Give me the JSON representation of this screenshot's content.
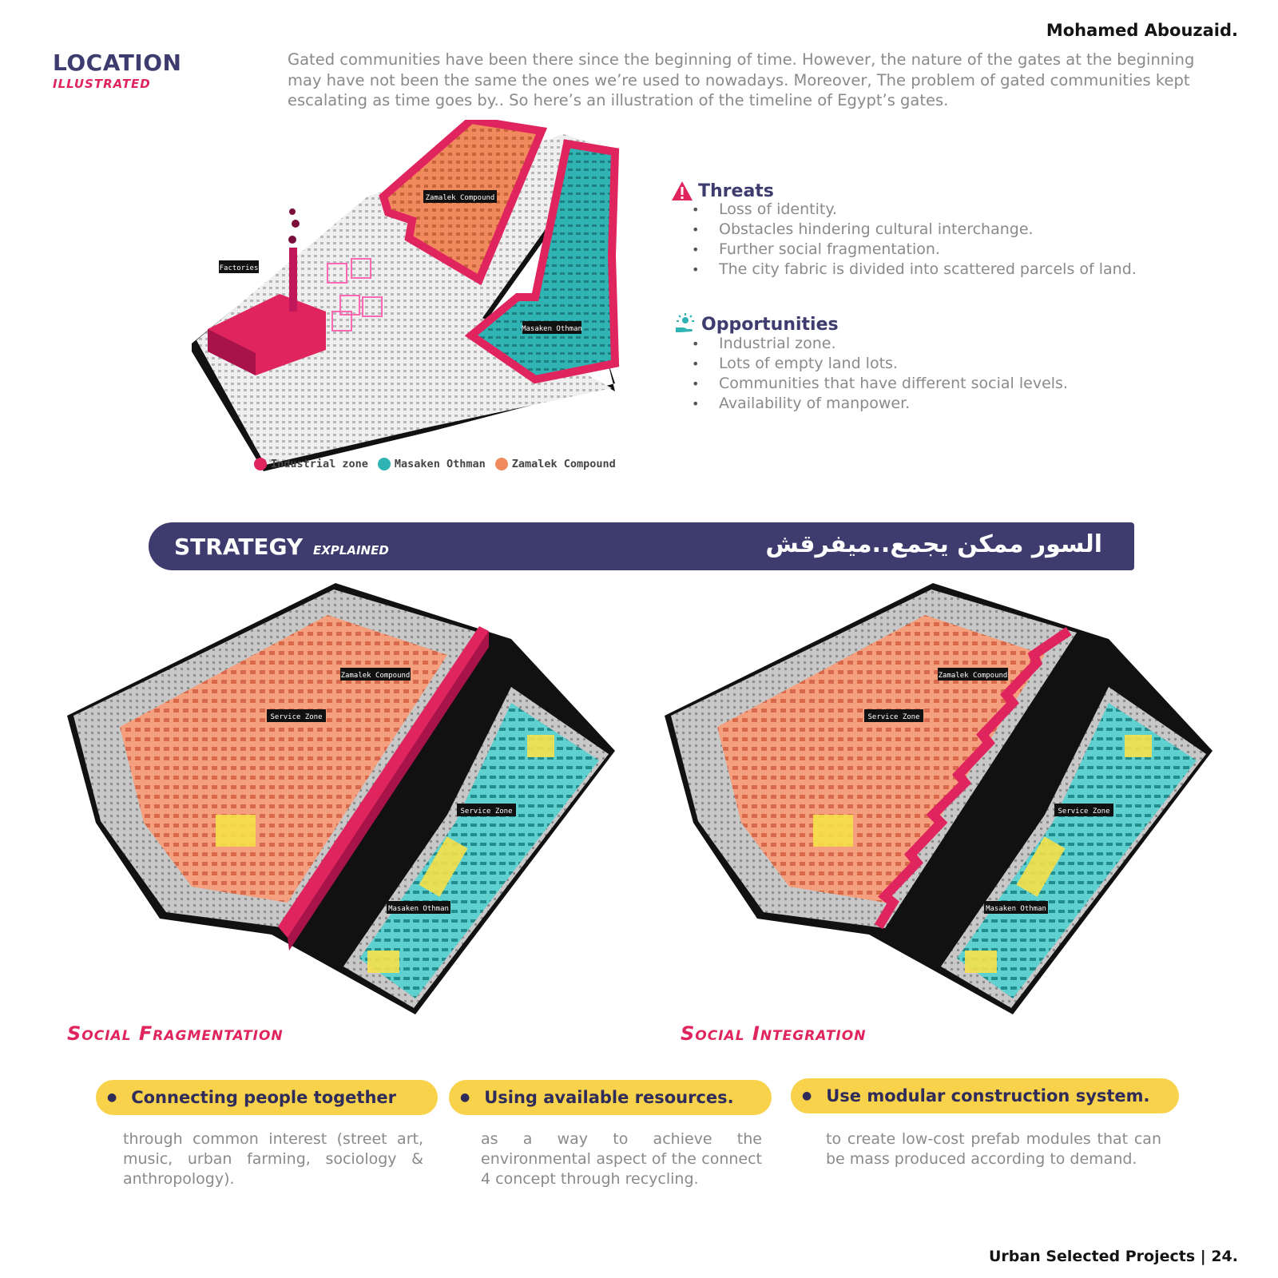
{
  "header": {
    "author": "Mohamed Abouzaid.",
    "section_title": "LOCATION",
    "section_subtitle": "ILLUSTRATED"
  },
  "intro": "Gated communities have been there since the beginning of time. However, the nature of the gates at the beginning may have not been the same the ones we’re used to nowadays. Moreover, The problem of gated communities kept escalating as time goes by.. So here’s an illustration of the timeline of Egypt’s gates.",
  "map_labels": {
    "factories": "Factories",
    "zamalek": "Zamalek Compound",
    "masaken": "Masaken Othman",
    "service_zone": "Service Zone"
  },
  "legend": [
    {
      "label": "Industrial zone",
      "color": "#e0245e"
    },
    {
      "label": "Masaken Othman",
      "color": "#2fb3b3"
    },
    {
      "label": "Zamalek Compound",
      "color": "#f08a5d"
    }
  ],
  "threats": {
    "title": "Threats",
    "icon": "warning-icon",
    "items": [
      "Loss of identity.",
      "Obstacles hindering cultural interchange.",
      "Further social fragmentation.",
      "The city fabric is divided into scattered parcels of land."
    ]
  },
  "opportunities": {
    "title": "Opportunities",
    "icon": "hand-sun-icon",
    "items": [
      "Industrial zone.",
      "Lots of empty land lots.",
      "Communities  that have different social levels.",
      "Availability of manpower."
    ]
  },
  "strategy": {
    "title": "STRATEGY",
    "subtitle": "EXPLAINED",
    "arabic": "السور ممكن يجمع..ميفرقش"
  },
  "captions": {
    "left": "Social Fragmentation",
    "right": "Social Integration"
  },
  "pills": [
    {
      "title": "Connecting people together",
      "text": "through common interest (street art, music, urban farming, sociology & anthropology)."
    },
    {
      "title": "Using available resources.",
      "text": "as a way to achieve the environmental aspect of the connect 4 concept through recycling."
    },
    {
      "title": "Use modular construction system.",
      "text": "to create low-cost prefab modules that can be mass produced according to demand."
    }
  ],
  "footer": "Urban Selected Projects  |  24.",
  "colors": {
    "navy": "#3e3b6e",
    "magenta": "#e0245e",
    "teal": "#2fb3b3",
    "orange": "#f08a5d",
    "yellow": "#f7d24a"
  }
}
